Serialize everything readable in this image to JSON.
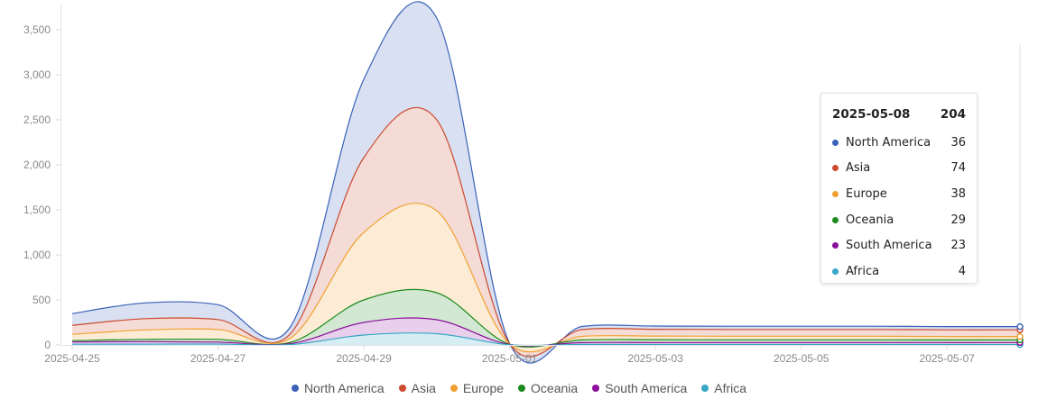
{
  "chart_data": {
    "type": "area",
    "stacked": true,
    "x": [
      "2025-04-25",
      "2025-04-26",
      "2025-04-27",
      "2025-04-28",
      "2025-04-29",
      "2025-04-30",
      "2025-05-01",
      "2025-05-02",
      "2025-05-03",
      "2025-05-04",
      "2025-05-05",
      "2025-05-06",
      "2025-05-07",
      "2025-05-08"
    ],
    "x_tick_labels": [
      "2025-04-25",
      "2025-04-27",
      "2025-04-29",
      "2025-05-01",
      "2025-05-03",
      "2025-05-05",
      "2025-05-07"
    ],
    "y_tick_labels": [
      "0",
      "500",
      "1,000",
      "1,500",
      "2,000",
      "2,500",
      "3,000",
      "3,500"
    ],
    "ylim": [
      0,
      3600
    ],
    "grid": false,
    "legend_position": "bottom",
    "series": [
      {
        "name": "Africa",
        "color": "#38a6c6",
        "values": [
          8,
          9,
          10,
          5,
          110,
          125,
          2,
          6,
          5,
          5,
          5,
          5,
          5,
          4
        ]
      },
      {
        "name": "South America",
        "color": "#8b0f9a",
        "values": [
          25,
          28,
          22,
          10,
          140,
          155,
          3,
          20,
          22,
          22,
          22,
          22,
          22,
          23
        ]
      },
      {
        "name": "Oceania",
        "color": "#1d8a1d",
        "values": [
          15,
          25,
          30,
          15,
          250,
          300,
          2,
          30,
          32,
          30,
          30,
          30,
          29,
          29
        ]
      },
      {
        "name": "Europe",
        "color": "#f0a030",
        "values": [
          70,
          105,
          110,
          50,
          750,
          910,
          3,
          40,
          40,
          40,
          40,
          40,
          38,
          38
        ]
      },
      {
        "name": "Asia",
        "color": "#cd4a30",
        "values": [
          100,
          125,
          110,
          50,
          830,
          1010,
          3,
          75,
          75,
          75,
          75,
          75,
          74,
          74
        ]
      },
      {
        "name": "North America",
        "color": "#3a62b8",
        "values": [
          130,
          175,
          165,
          80,
          870,
          1130,
          4,
          35,
          36,
          36,
          36,
          36,
          36,
          36
        ]
      }
    ]
  },
  "legend": {
    "items": [
      {
        "name": "North America",
        "color": "#3a62b8"
      },
      {
        "name": "Asia",
        "color": "#cd4a30"
      },
      {
        "name": "Europe",
        "color": "#f0a030"
      },
      {
        "name": "Oceania",
        "color": "#1d8a1d"
      },
      {
        "name": "South America",
        "color": "#8b0f9a"
      },
      {
        "name": "Africa",
        "color": "#38a6c6"
      }
    ]
  },
  "tooltip": {
    "date": "2025-05-08",
    "total": "204",
    "rows": [
      {
        "name": "North America",
        "value": "36",
        "color": "#3a62b8"
      },
      {
        "name": "Asia",
        "value": "74",
        "color": "#cd4a30"
      },
      {
        "name": "Europe",
        "value": "38",
        "color": "#f0a030"
      },
      {
        "name": "Oceania",
        "value": "29",
        "color": "#1d8a1d"
      },
      {
        "name": "South America",
        "value": "23",
        "color": "#8b0f9a"
      },
      {
        "name": "Africa",
        "value": "4",
        "color": "#38a6c6"
      }
    ]
  }
}
